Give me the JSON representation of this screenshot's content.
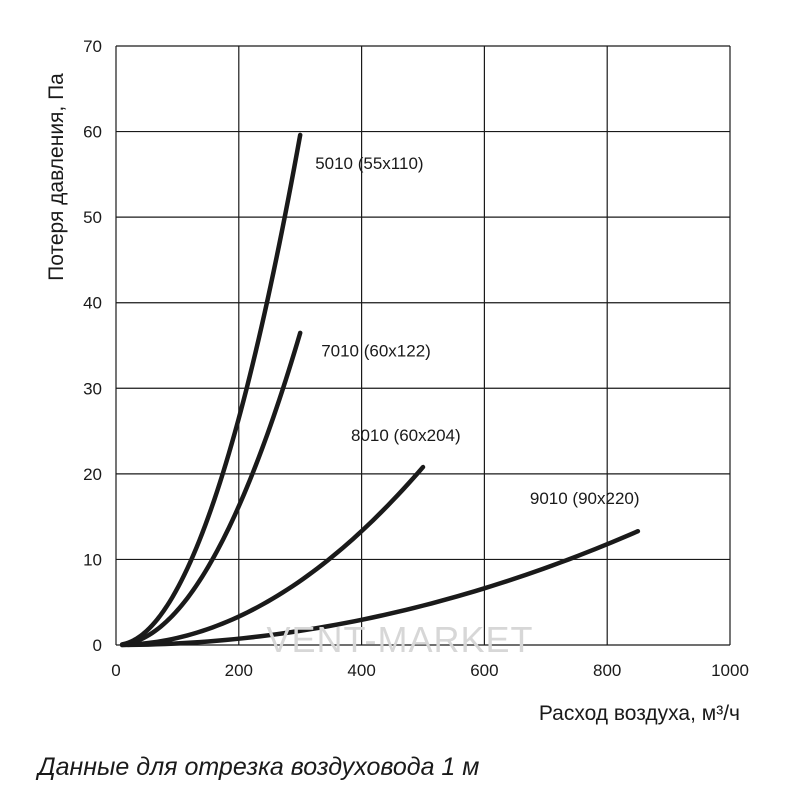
{
  "caption": "Данные для отрезка воздуховода 1 м",
  "watermark": "VENT-MARKET",
  "chart_data": {
    "type": "line",
    "title": "",
    "xlabel": "Расход воздуха, м³/ч",
    "ylabel": "Потеря давления, Па",
    "xlim": [
      0,
      1000
    ],
    "ylim": [
      0,
      70
    ],
    "x_ticks": [
      "0",
      "200",
      "400",
      "600",
      "800",
      "1000"
    ],
    "y_ticks": [
      "0",
      "10",
      "20",
      "30",
      "40",
      "50",
      "60",
      "70"
    ],
    "grid": true,
    "series": [
      {
        "name": "5010 (55x110)",
        "x": [
          0,
          50,
          100,
          150,
          200,
          250,
          300
        ],
        "y": [
          0,
          1.7,
          6.6,
          14.9,
          26.5,
          41.4,
          59.6
        ]
      },
      {
        "name": "7010 (60x122)",
        "x": [
          0,
          50,
          100,
          150,
          200,
          250,
          300
        ],
        "y": [
          0,
          1.0,
          4.1,
          9.1,
          16.2,
          25.3,
          36.5
        ]
      },
      {
        "name": "8010 (60x204)",
        "x": [
          0,
          100,
          200,
          300,
          400,
          500
        ],
        "y": [
          0,
          0.8,
          3.3,
          7.5,
          13.3,
          20.8
        ]
      },
      {
        "name": "9010 (90x220)",
        "x": [
          0,
          200,
          400,
          600,
          850
        ],
        "y": [
          0,
          0.7,
          3.0,
          6.6,
          13.3
        ]
      }
    ]
  }
}
